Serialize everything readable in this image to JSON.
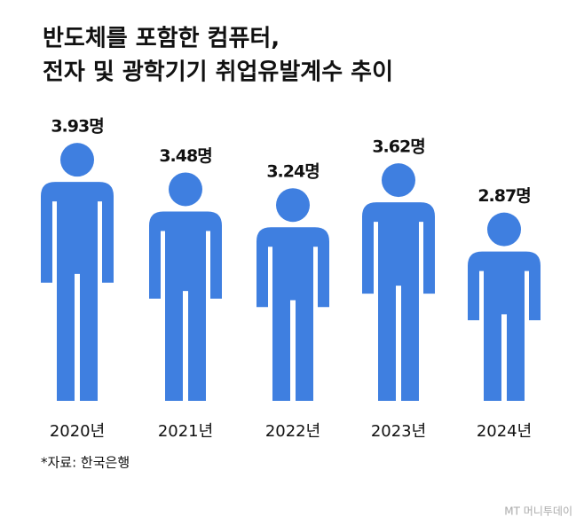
{
  "chart_data": {
    "type": "pictogram",
    "title": [
      "반도체를 포함한 컴퓨터,",
      "전자 및 광학기기 취업유발계수 추이"
    ],
    "categories": [
      "2020년",
      "2021년",
      "2022년",
      "2023년",
      "2024년"
    ],
    "values": [
      3.93,
      3.48,
      3.24,
      3.62,
      2.87
    ],
    "value_labels": [
      "3.93명",
      "3.48명",
      "3.24명",
      "3.62명",
      "2.87명"
    ],
    "color": "#3f7fe0",
    "source": "*자료: 한국은행",
    "watermark": "MT 머니투데이"
  }
}
